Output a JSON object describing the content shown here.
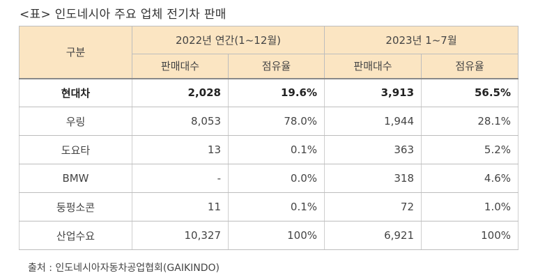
{
  "title": "<표> 인도네시아 주요 업체 전기차 판매",
  "table": {
    "header_category": "구분",
    "period_1": "2022년 연간(1~12월)",
    "period_2": "2023년 1~7월",
    "sub_headers": [
      "판매대수",
      "점유율",
      "판매대수",
      "점유율"
    ],
    "rows": [
      {
        "name": "현대차",
        "sales_2022": "2,028",
        "share_2022": "19.6%",
        "sales_2023": "3,913",
        "share_2023": "56.5%"
      },
      {
        "name": "우링",
        "sales_2022": "8,053",
        "share_2022": "78.0%",
        "sales_2023": "1,944",
        "share_2023": "28.1%"
      },
      {
        "name": "도요타",
        "sales_2022": "13",
        "share_2022": "0.1%",
        "sales_2023": "363",
        "share_2023": "5.2%"
      },
      {
        "name": "BMW",
        "sales_2022": "-",
        "share_2022": "0.0%",
        "sales_2023": "318",
        "share_2023": "4.6%"
      },
      {
        "name": "둥펑소콘",
        "sales_2022": "11",
        "share_2022": "0.1%",
        "sales_2023": "72",
        "share_2023": "1.0%"
      },
      {
        "name": "산업수요",
        "sales_2022": "10,327",
        "share_2022": "100%",
        "sales_2023": "6,921",
        "share_2023": "100%"
      }
    ]
  },
  "source": "출처 : 인도네시아자동차공업협회(GAIKINDO)",
  "colors": {
    "header_bg": "#fbe5c2",
    "border": "#bdbdbd"
  }
}
